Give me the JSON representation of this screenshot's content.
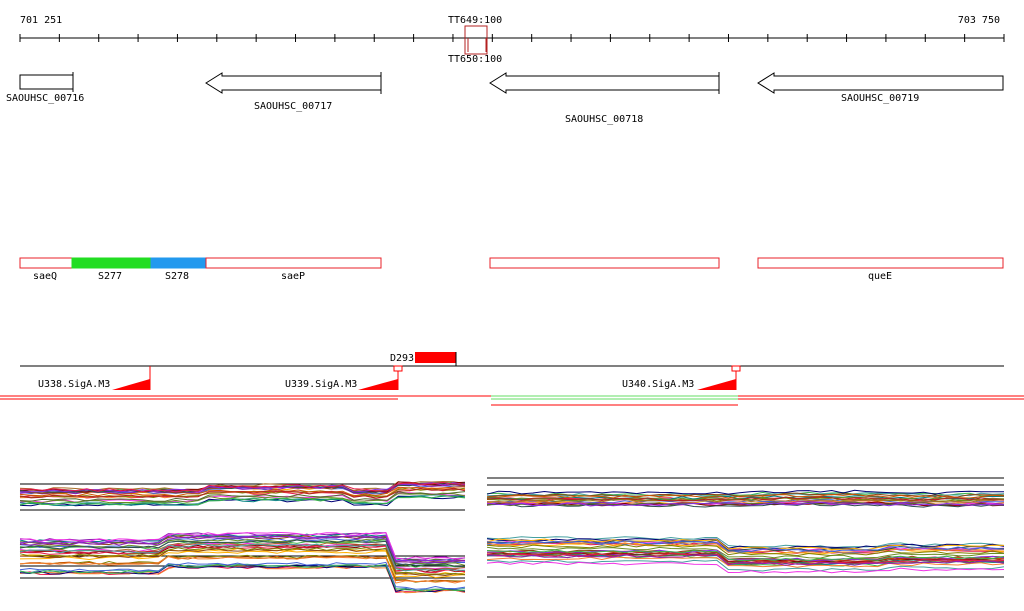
{
  "ruler": {
    "start_label": "701 251",
    "end_label": "703 750",
    "marker_label_top": "TT649:100",
    "marker_label_bottom": "TT650:100"
  },
  "genes": [
    {
      "label": "SAOUHSC_00716",
      "direction": "right"
    },
    {
      "label": "SAOUHSC_00717",
      "direction": "left"
    },
    {
      "label": "SAOUHSC_00718",
      "direction": "left"
    },
    {
      "label": "SAOUHSC_00719",
      "direction": "left"
    }
  ],
  "regions": {
    "box_labels": [
      "saeP",
      "queE"
    ],
    "segment_labels": [
      "saeQ",
      "S277",
      "S278"
    ],
    "colors": {
      "outline": "#e8202a",
      "s277": "#22dd22",
      "s278": "#2299ee"
    }
  },
  "features": {
    "deletion_label": "D293",
    "promoters": [
      "U338.SigA.M3",
      "U339.SigA.M3",
      "U340.SigA.M3"
    ],
    "colors": {
      "red": "#ff0000",
      "green": "#66dd66"
    }
  }
}
